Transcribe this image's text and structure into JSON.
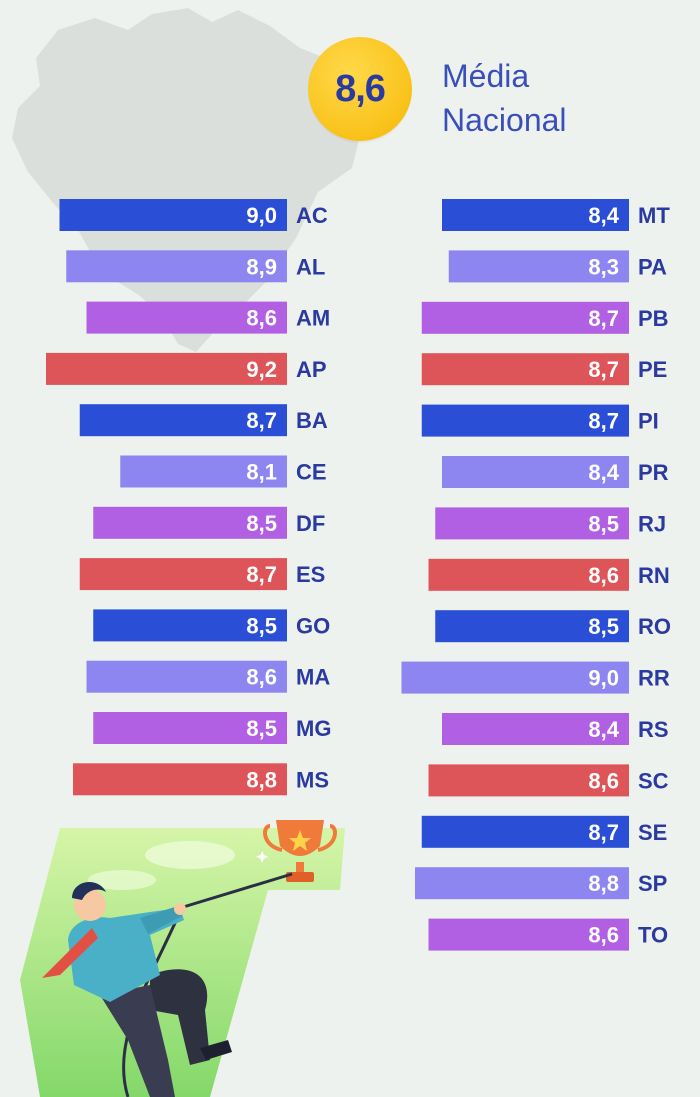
{
  "national": {
    "value": "8,6",
    "label_line1": "Média",
    "label_line2": "Nacional"
  },
  "colors": {
    "blue": "#2a4fd6",
    "lavender": "#8e86f0",
    "purple": "#b160e4",
    "red": "#dd5559",
    "label": "#2a3aa0",
    "badge": "#f9c21a"
  },
  "chart_data": {
    "type": "bar",
    "orientation": "horizontal",
    "xlim": [
      0,
      10
    ],
    "columns": [
      [
        {
          "state": "AC",
          "value": 9.0,
          "label": "9,0",
          "color": "blue"
        },
        {
          "state": "AL",
          "value": 8.9,
          "label": "8,9",
          "color": "lavender"
        },
        {
          "state": "AM",
          "value": 8.6,
          "label": "8,6",
          "color": "purple"
        },
        {
          "state": "AP",
          "value": 9.2,
          "label": "9,2",
          "color": "red"
        },
        {
          "state": "BA",
          "value": 8.7,
          "label": "8,7",
          "color": "blue"
        },
        {
          "state": "CE",
          "value": 8.1,
          "label": "8,1",
          "color": "lavender"
        },
        {
          "state": "DF",
          "value": 8.5,
          "label": "8,5",
          "color": "purple"
        },
        {
          "state": "ES",
          "value": 8.7,
          "label": "8,7",
          "color": "red"
        },
        {
          "state": "GO",
          "value": 8.5,
          "label": "8,5",
          "color": "blue"
        },
        {
          "state": "MA",
          "value": 8.6,
          "label": "8,6",
          "color": "lavender"
        },
        {
          "state": "MG",
          "value": 8.5,
          "label": "8,5",
          "color": "purple"
        },
        {
          "state": "MS",
          "value": 8.8,
          "label": "8,8",
          "color": "red"
        }
      ],
      [
        {
          "state": "MT",
          "value": 8.4,
          "label": "8,4",
          "color": "blue"
        },
        {
          "state": "PA",
          "value": 8.3,
          "label": "8,3",
          "color": "lavender"
        },
        {
          "state": "PB",
          "value": 8.7,
          "label": "8,7",
          "color": "purple"
        },
        {
          "state": "PE",
          "value": 8.7,
          "label": "8,7",
          "color": "red"
        },
        {
          "state": "PI",
          "value": 8.7,
          "label": "8,7",
          "color": "blue"
        },
        {
          "state": "PR",
          "value": 8.4,
          "label": "8,4",
          "color": "lavender"
        },
        {
          "state": "RJ",
          "value": 8.5,
          "label": "8,5",
          "color": "purple"
        },
        {
          "state": "RN",
          "value": 8.6,
          "label": "8,6",
          "color": "red"
        },
        {
          "state": "RO",
          "value": 8.5,
          "label": "8,5",
          "color": "blue"
        },
        {
          "state": "RR",
          "value": 9.0,
          "label": "9,0",
          "color": "lavender"
        },
        {
          "state": "RS",
          "value": 8.4,
          "label": "8,4",
          "color": "purple"
        },
        {
          "state": "SC",
          "value": 8.6,
          "label": "8,6",
          "color": "red"
        },
        {
          "state": "SE",
          "value": 8.7,
          "label": "8,7",
          "color": "blue"
        },
        {
          "state": "SP",
          "value": 8.8,
          "label": "8,8",
          "color": "lavender"
        },
        {
          "state": "TO",
          "value": 8.6,
          "label": "8,6",
          "color": "purple"
        }
      ]
    ]
  }
}
